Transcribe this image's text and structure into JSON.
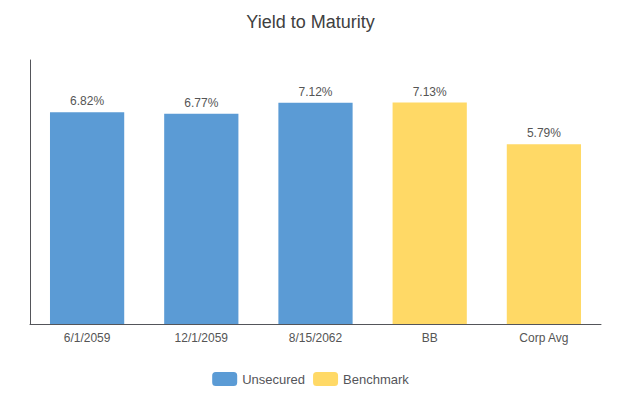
{
  "chart_data": {
    "type": "bar",
    "title": "Yield to Maturity",
    "categories": [
      "6/1/2059",
      "12/1/2059",
      "8/15/2062",
      "BB",
      "Corp Avg"
    ],
    "series": [
      {
        "name": "Unsecured",
        "color": "#5B9BD5",
        "values": [
          6.82,
          6.77,
          7.12,
          null,
          null
        ],
        "value_labels": [
          "6.82%",
          "6.77%",
          "7.12%",
          null,
          null
        ]
      },
      {
        "name": "Benchmark",
        "color": "#FFD966",
        "values": [
          null,
          null,
          null,
          7.13,
          5.79
        ],
        "value_labels": [
          null,
          null,
          null,
          "7.13%",
          "5.79%"
        ]
      }
    ],
    "ylim": [
      0,
      8.5
    ],
    "grid": false,
    "legend": "bottom",
    "data_labels": true,
    "tick_labels": "x"
  }
}
